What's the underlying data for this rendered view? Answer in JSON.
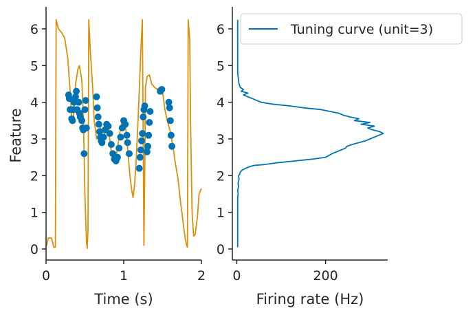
{
  "chart_data": [
    {
      "type": "scatter",
      "xlabel": "Time (s)",
      "ylabel": "Feature",
      "xlim": [
        0,
        2
      ],
      "ylim": [
        -0.3,
        6.6
      ],
      "xticks": [
        0,
        1,
        2
      ],
      "xtick_labels": [
        "0",
        "1",
        "2"
      ],
      "yticks": [
        0,
        1,
        2,
        3,
        4,
        5,
        6
      ],
      "ytick_labels": [
        "0",
        "1",
        "2",
        "3",
        "4",
        "5",
        "6"
      ],
      "grid": false,
      "colors": {
        "feature_line": "#de8f05",
        "spikes": "#0173b2"
      },
      "feature_series": {
        "x": [
          0.0,
          0.03,
          0.07,
          0.1,
          0.12,
          0.13,
          0.16,
          0.2,
          0.24,
          0.28,
          0.31,
          0.33,
          0.35,
          0.36,
          0.38,
          0.41,
          0.43,
          0.46,
          0.48,
          0.5,
          0.52,
          0.53,
          0.54,
          0.55,
          0.57,
          0.6,
          0.62,
          0.65,
          0.68,
          0.7,
          0.72,
          0.74,
          0.76,
          0.78,
          0.8,
          0.82,
          0.84,
          0.86,
          0.88,
          0.9,
          0.92,
          0.94,
          0.96,
          0.98,
          1.0,
          1.02,
          1.04,
          1.06,
          1.08,
          1.1,
          1.12,
          1.14,
          1.16,
          1.18,
          1.2,
          1.22,
          1.24,
          1.26,
          1.27,
          1.28,
          1.3,
          1.33,
          1.36,
          1.4,
          1.43,
          1.46,
          1.5,
          1.53,
          1.56,
          1.6,
          1.63,
          1.66,
          1.7,
          1.73,
          1.76,
          1.79,
          1.81,
          1.82,
          1.83,
          1.85,
          1.86,
          1.88,
          1.9,
          1.92,
          1.95,
          1.97,
          2.0
        ],
        "y": [
          0.05,
          0.3,
          0.3,
          0.05,
          0.05,
          6.25,
          6.0,
          5.9,
          5.75,
          5.2,
          4.3,
          3.6,
          3.5,
          3.8,
          4.5,
          4.9,
          5.0,
          4.6,
          3.6,
          1.5,
          0.2,
          0.02,
          0.5,
          6.25,
          5.4,
          4.4,
          3.5,
          3.0,
          3.1,
          3.3,
          3.05,
          2.9,
          3.2,
          3.4,
          3.35,
          3.0,
          2.65,
          2.5,
          2.4,
          2.5,
          2.75,
          3.05,
          3.3,
          3.5,
          3.55,
          3.4,
          3.0,
          2.5,
          2.0,
          1.65,
          1.4,
          1.75,
          2.4,
          3.3,
          4.3,
          5.4,
          6.25,
          0.1,
          2.0,
          4.4,
          4.7,
          4.75,
          4.5,
          4.4,
          4.35,
          4.4,
          4.3,
          3.8,
          3.5,
          3.2,
          2.85,
          2.4,
          1.9,
          1.3,
          0.8,
          0.3,
          0.1,
          0.05,
          6.25,
          5.7,
          3.5,
          1.0,
          0.35,
          0.4,
          0.9,
          1.5,
          1.65
        ]
      },
      "spikes": {
        "x": [
          0.29,
          0.3,
          0.31,
          0.33,
          0.34,
          0.35,
          0.36,
          0.38,
          0.39,
          0.4,
          0.42,
          0.43,
          0.44,
          0.46,
          0.47,
          0.48,
          0.49,
          0.5,
          0.51,
          0.52,
          0.65,
          0.66,
          0.67,
          0.68,
          0.69,
          0.7,
          0.71,
          0.72,
          0.74,
          0.76,
          0.78,
          0.8,
          0.82,
          0.84,
          0.86,
          0.88,
          0.9,
          0.92,
          0.94,
          0.96,
          0.98,
          1.0,
          1.02,
          1.04,
          1.05,
          1.07,
          1.2,
          1.21,
          1.22,
          1.23,
          1.24,
          1.25,
          1.26,
          1.27,
          1.3,
          1.31,
          1.32,
          1.33,
          1.34,
          1.47,
          1.49,
          1.58,
          1.59,
          1.6,
          1.61,
          1.62
        ],
        "y": [
          4.2,
          4.1,
          3.8,
          3.55,
          3.5,
          3.8,
          4.0,
          4.15,
          4.3,
          3.8,
          4.0,
          3.7,
          3.6,
          3.5,
          3.3,
          3.25,
          2.6,
          3.8,
          4.05,
          3.3,
          4.15,
          3.85,
          3.6,
          3.4,
          3.2,
          3.05,
          2.95,
          2.9,
          3.05,
          3.25,
          3.4,
          3.35,
          3.15,
          2.85,
          2.6,
          2.45,
          2.4,
          2.5,
          2.75,
          3.05,
          3.3,
          3.5,
          3.4,
          3.1,
          2.9,
          2.6,
          2.2,
          2.5,
          2.7,
          2.95,
          3.15,
          3.6,
          3.8,
          3.9,
          2.65,
          2.8,
          3.1,
          3.45,
          3.75,
          4.3,
          4.35,
          4.0,
          3.85,
          3.5,
          3.1,
          2.8
        ]
      }
    },
    {
      "type": "line",
      "xlabel": "Firing rate (Hz)",
      "ylabel": "",
      "xlim": [
        -10,
        340
      ],
      "ylim": [
        -0.3,
        6.6
      ],
      "xticks": [
        0,
        200
      ],
      "xtick_labels": [
        "0",
        "200"
      ],
      "yticks": [
        0,
        1,
        2,
        3,
        4,
        5,
        6
      ],
      "ytick_labels": [
        "0",
        "1",
        "2",
        "3",
        "4",
        "5",
        "6"
      ],
      "grid": false,
      "legend_position": "top-right",
      "series": [
        {
          "name": "Tuning curve (unit=3)",
          "color": "#0173b2",
          "x": [
            2,
            2,
            2,
            2,
            2,
            3,
            2,
            4,
            3,
            5,
            4,
            7,
            8,
            12,
            20,
            30,
            40,
            60,
            90,
            130,
            170,
            200,
            215,
            235,
            245,
            248,
            260,
            275,
            290,
            300,
            310,
            320,
            330,
            322,
            305,
            295,
            310,
            280,
            300,
            265,
            275,
            255,
            240,
            230,
            190,
            150,
            120,
            80,
            55,
            35,
            25,
            15,
            25,
            10,
            15,
            8,
            5,
            4,
            3,
            2,
            2,
            2,
            2
          ],
          "y": [
            0.05,
            0.5,
            1.0,
            1.3,
            1.4,
            1.5,
            1.6,
            1.7,
            1.8,
            1.9,
            2.0,
            2.05,
            2.1,
            2.15,
            2.2,
            2.25,
            2.28,
            2.3,
            2.35,
            2.4,
            2.45,
            2.5,
            2.6,
            2.7,
            2.75,
            2.8,
            2.85,
            2.9,
            2.95,
            3.0,
            3.05,
            3.1,
            3.15,
            3.2,
            3.25,
            3.3,
            3.35,
            3.4,
            3.45,
            3.5,
            3.55,
            3.6,
            3.65,
            3.7,
            3.8,
            3.85,
            3.9,
            3.95,
            4.0,
            4.1,
            4.15,
            4.2,
            4.25,
            4.3,
            4.35,
            4.4,
            4.5,
            4.6,
            4.7,
            4.8,
            5.0,
            5.5,
            6.25
          ]
        }
      ]
    }
  ]
}
